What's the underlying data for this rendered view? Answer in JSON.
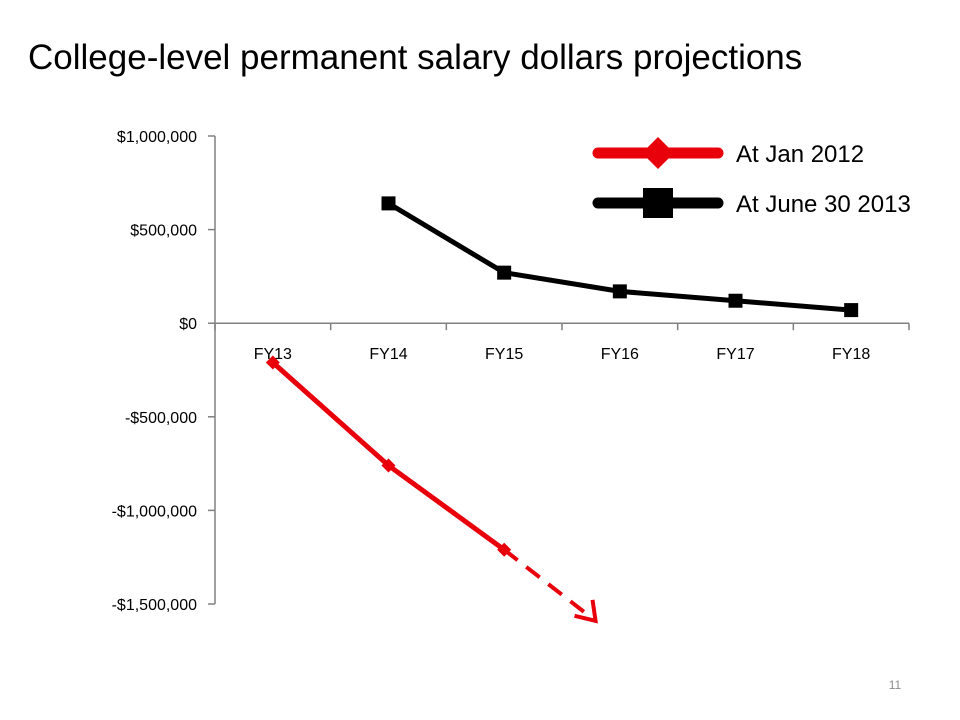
{
  "page": {
    "title": "College-level permanent salary dollars projections",
    "page_number": "11"
  },
  "chart_data": {
    "type": "line",
    "title": "College-level permanent salary dollars projections",
    "categories": [
      "FY13",
      "FY14",
      "FY15",
      "FY16",
      "FY17",
      "FY18"
    ],
    "y_ticks": [
      {
        "value": 1000000,
        "label": "$1,000,000"
      },
      {
        "value": 500000,
        "label": "$500,000"
      },
      {
        "value": 0,
        "label": "$0"
      },
      {
        "value": -500000,
        "label": "-$500,000"
      },
      {
        "value": -1000000,
        "label": "-$1,000,000"
      },
      {
        "value": -1500000,
        "label": "-$1,500,000"
      }
    ],
    "ylim": [
      -1500000,
      1000000
    ],
    "grid": false,
    "legend_position": "top-right",
    "series": [
      {
        "name": "At Jan 2012",
        "color": "#e8000b",
        "marker": "diamond",
        "values": [
          -210000,
          -760000,
          -1210000,
          null,
          null,
          null
        ],
        "trend_arrow": {
          "style": "dashed",
          "from": {
            "x": "FY15",
            "y": -1210000
          },
          "to_y": -1590000
        }
      },
      {
        "name": "At June 30 2013",
        "color": "#000000",
        "marker": "square",
        "values": [
          null,
          640000,
          270000,
          170000,
          120000,
          70000
        ]
      }
    ]
  }
}
